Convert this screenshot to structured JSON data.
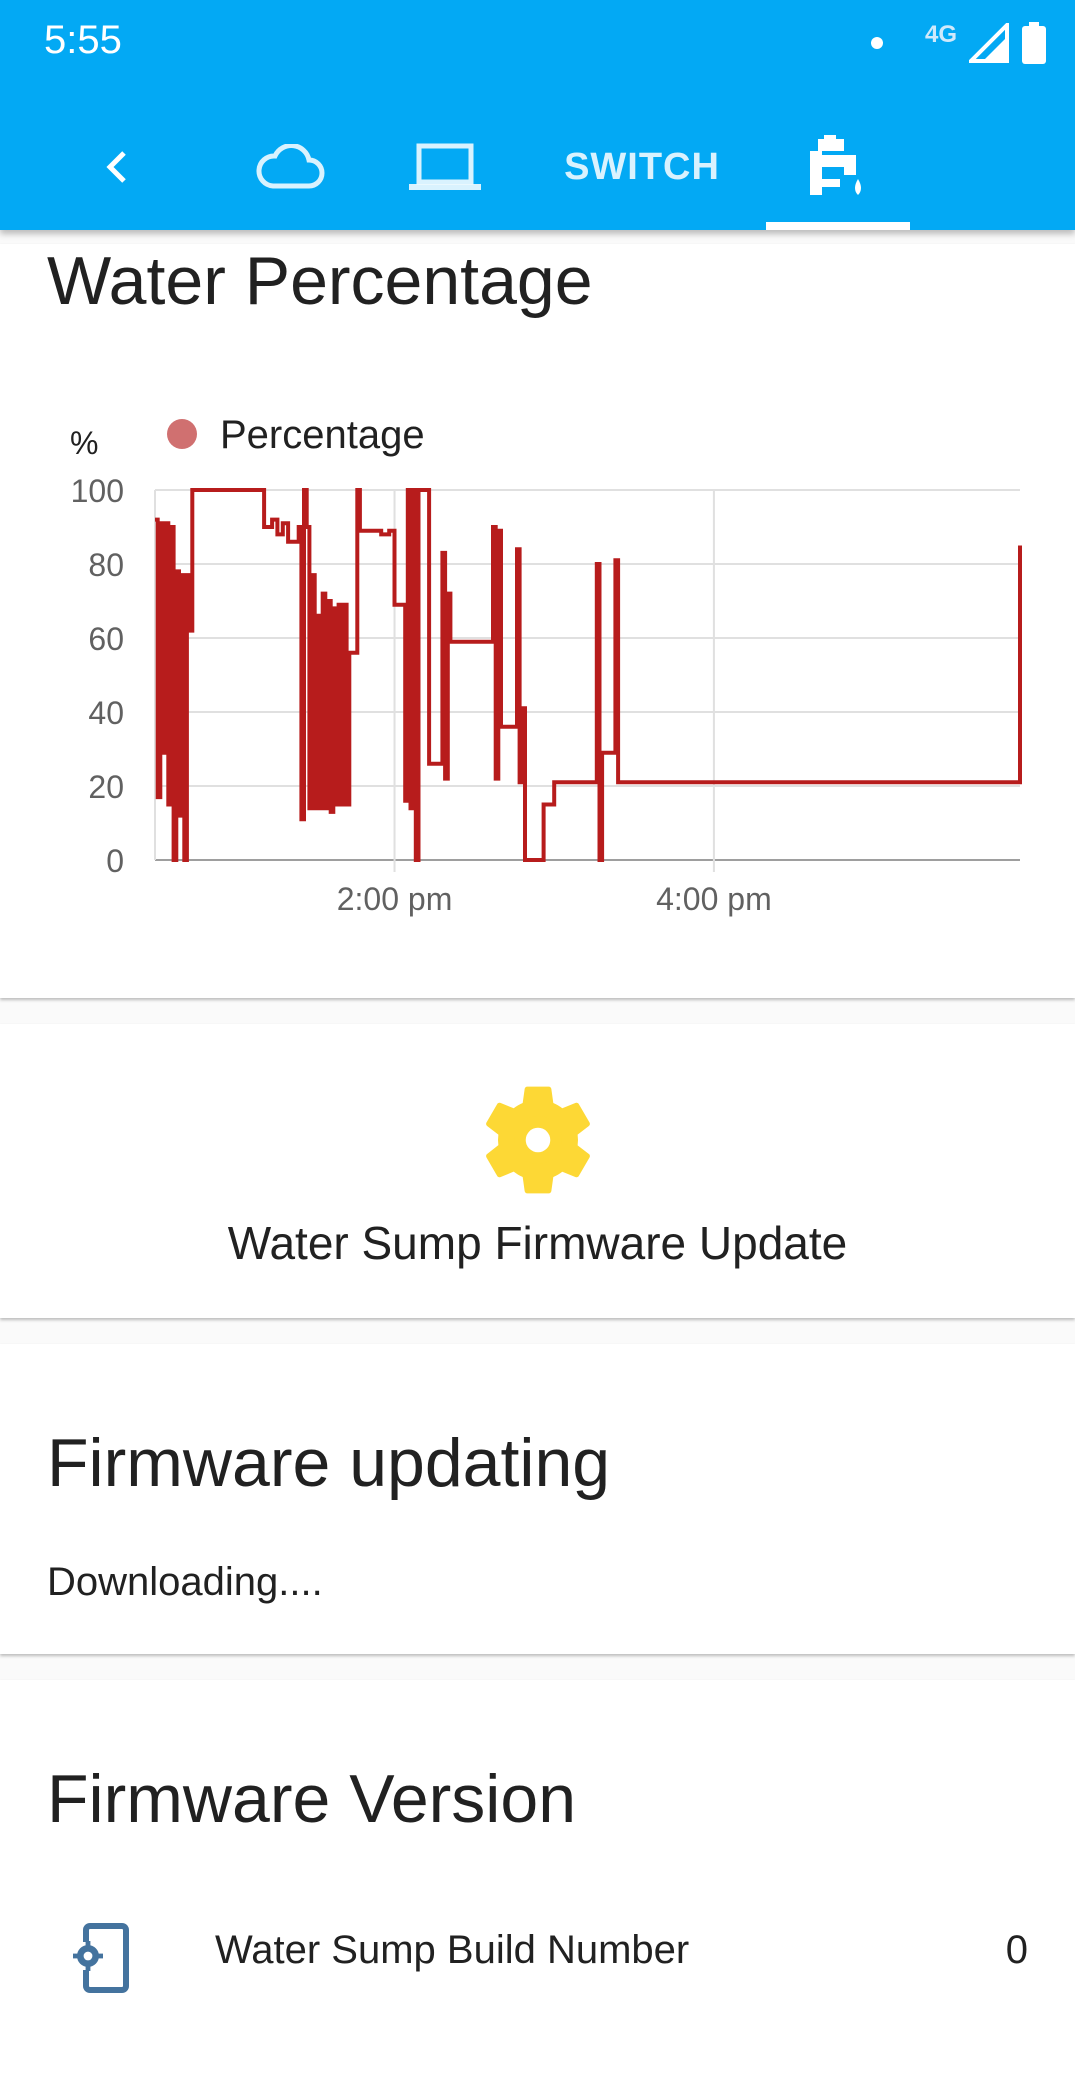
{
  "status_bar": {
    "time": "5:55",
    "network": "4G"
  },
  "tabs": {
    "back_icon": "chevron-left-icon",
    "items": [
      {
        "icon": "cloud-icon"
      },
      {
        "icon": "laptop-icon"
      },
      {
        "label": "SWITCH"
      },
      {
        "icon": "water-pump-icon",
        "selected": true
      }
    ]
  },
  "water_card": {
    "title": "Water Percentage",
    "chart_data": {
      "type": "line",
      "step": true,
      "title": "",
      "ylabel": "%",
      "legend": [
        {
          "name": "Percentage",
          "color": "#d07070"
        }
      ],
      "legend_position": "top-left",
      "ylim": [
        0,
        100
      ],
      "yticks": [
        0,
        20,
        40,
        60,
        80,
        100
      ],
      "xticks": [
        "2:00 pm",
        "4:00 pm"
      ],
      "xlim": [
        "12:30 pm",
        "5:55 pm"
      ],
      "grid": true,
      "series": [
        {
          "name": "Percentage",
          "color": "#b71c1c",
          "points": [
            [
              "12:30 pm",
              92
            ],
            [
              "12:31 pm",
              17
            ],
            [
              "12:32 pm",
              91
            ],
            [
              "12:33 pm",
              29
            ],
            [
              "12:34 pm",
              91
            ],
            [
              "12:35 pm",
              15
            ],
            [
              "12:36 pm",
              90
            ],
            [
              "12:37 pm",
              0
            ],
            [
              "12:38 pm",
              78
            ],
            [
              "12:39 pm",
              12
            ],
            [
              "12:40 pm",
              77
            ],
            [
              "12:41 pm",
              0
            ],
            [
              "12:42 pm",
              77
            ],
            [
              "12:43 pm",
              62
            ],
            [
              "12:44 pm",
              100
            ],
            [
              "1:00 pm",
              100
            ],
            [
              "1:10 pm",
              100
            ],
            [
              "1:11 pm",
              90
            ],
            [
              "1:14 pm",
              92
            ],
            [
              "1:16 pm",
              88
            ],
            [
              "1:18 pm",
              91
            ],
            [
              "1:20 pm",
              86
            ],
            [
              "1:24 pm",
              90
            ],
            [
              "1:25 pm",
              11
            ],
            [
              "1:26 pm",
              100
            ],
            [
              "1:27 pm",
              90
            ],
            [
              "1:28 pm",
              14
            ],
            [
              "1:29 pm",
              77
            ],
            [
              "1:30 pm",
              14
            ],
            [
              "1:31 pm",
              66
            ],
            [
              "1:32 pm",
              14
            ],
            [
              "1:33 pm",
              72
            ],
            [
              "1:34 pm",
              14
            ],
            [
              "1:35 pm",
              70
            ],
            [
              "1:36 pm",
              13
            ],
            [
              "1:37 pm",
              68
            ],
            [
              "1:38 pm",
              15
            ],
            [
              "1:39 pm",
              69
            ],
            [
              "1:40 pm",
              15
            ],
            [
              "1:41 pm",
              69
            ],
            [
              "1:42 pm",
              15
            ],
            [
              "1:43 pm",
              56
            ],
            [
              "1:45 pm",
              56
            ],
            [
              "1:46 pm",
              100
            ],
            [
              "1:47 pm",
              89
            ],
            [
              "1:55 pm",
              88
            ],
            [
              "1:58 pm",
              89
            ],
            [
              "2:00 pm",
              69
            ],
            [
              "2:03 pm",
              69
            ],
            [
              "2:04 pm",
              16
            ],
            [
              "2:05 pm",
              100
            ],
            [
              "2:06 pm",
              14
            ],
            [
              "2:07 pm",
              100
            ],
            [
              "2:08 pm",
              0
            ],
            [
              "2:09 pm",
              100
            ],
            [
              "2:12 pm",
              100
            ],
            [
              "2:13 pm",
              26
            ],
            [
              "2:17 pm",
              26
            ],
            [
              "2:18 pm",
              83
            ],
            [
              "2:19 pm",
              22
            ],
            [
              "2:20 pm",
              72
            ],
            [
              "2:21 pm",
              59
            ],
            [
              "2:36 pm",
              59
            ],
            [
              "2:37 pm",
              90
            ],
            [
              "2:38 pm",
              22
            ],
            [
              "2:39 pm",
              89
            ],
            [
              "2:40 pm",
              36
            ],
            [
              "2:45 pm",
              36
            ],
            [
              "2:46 pm",
              84
            ],
            [
              "2:47 pm",
              21
            ],
            [
              "2:48 pm",
              41
            ],
            [
              "2:49 pm",
              0
            ],
            [
              "2:55 pm",
              0
            ],
            [
              "2:56 pm",
              15
            ],
            [
              "3:00 pm",
              21
            ],
            [
              "3:15 pm",
              21
            ],
            [
              "3:16 pm",
              80
            ],
            [
              "3:17 pm",
              0
            ],
            [
              "3:18 pm",
              29
            ],
            [
              "3:22 pm",
              29
            ],
            [
              "3:23 pm",
              81
            ],
            [
              "3:24 pm",
              21
            ],
            [
              "5:54 pm",
              21
            ],
            [
              "5:55 pm",
              85
            ]
          ]
        }
      ]
    }
  },
  "update_card": {
    "icon": "gear-icon",
    "icon_color": "#fdd835",
    "label": "Water Sump Firmware Update"
  },
  "updating_card": {
    "title": "Firmware updating",
    "status": "Downloading...."
  },
  "version_card": {
    "title": "Firmware Version",
    "rows": [
      {
        "icon": "cellphone-cog-icon",
        "label": "Water Sump Build Number",
        "value": "0"
      }
    ]
  },
  "colors": {
    "header": "#03a9f4",
    "series": "#b71c1c",
    "legend_dot": "#d07070",
    "gear": "#fdd835",
    "device_icon": "#44739e"
  }
}
